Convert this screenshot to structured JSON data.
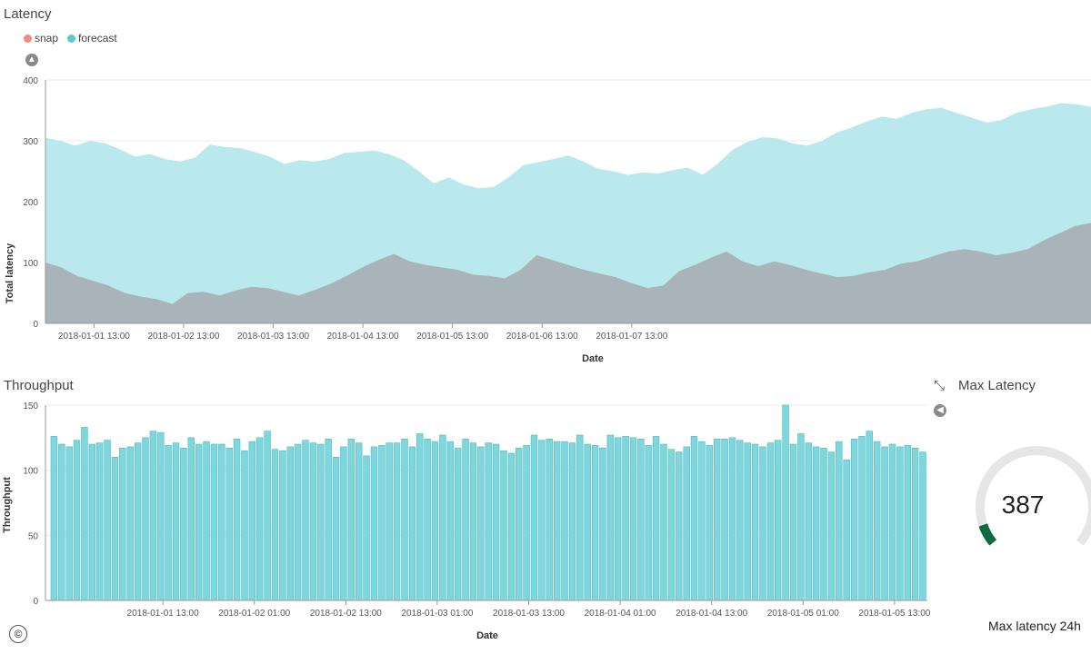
{
  "colors": {
    "snap": "#f28a85",
    "forecast": "#5cc7cf",
    "forecast_fill": "#b9e9ec",
    "snap_fill": "#a9b4ba",
    "bar": "#7fd7de",
    "bar_edge": "#4fb9c2",
    "gauge_track": "#e6e6e6",
    "gauge_fill": "#0f6b3f",
    "axis": "#999999"
  },
  "latency_panel": {
    "title": "Latency",
    "legend": [
      {
        "label": "snap",
        "color": "#f28a85"
      },
      {
        "label": "forecast",
        "color": "#5cc7cf"
      }
    ],
    "collapse_icon": "chevron-up-icon"
  },
  "throughput_panel": {
    "title": "Throughput",
    "collapse_icon": "chevron-left-icon"
  },
  "max_latency_panel": {
    "title": "Max Latency",
    "expand_icon": "expand-arrows-icon",
    "collapse_icon": "chevron-left-icon",
    "value": "387",
    "subtitle": "Max latency 24h",
    "gauge_fraction": 0.08
  },
  "copyright_symbol": "©",
  "chart_data": [
    {
      "type": "area",
      "xlabel": "Date",
      "ylabel": "Total latency",
      "ylim": [
        0,
        400
      ],
      "yticks": [
        0,
        100,
        200,
        300,
        400
      ],
      "x_tick_labels": [
        "2018-01-01 13:00",
        "2018-01-02 13:00",
        "2018-01-03 13:00",
        "2018-01-04 13:00",
        "2018-01-05 13:00",
        "2018-01-06 13:00",
        "2018-01-07 13:00"
      ],
      "x_start": "2018-01-01 00:00",
      "x_step_hours": 4,
      "grid": true,
      "legend_position": "top-left",
      "series": [
        {
          "name": "snap",
          "values": [
            100,
            92,
            78,
            70,
            62,
            50,
            44,
            40,
            32,
            50,
            52,
            46,
            54,
            60,
            58,
            52,
            46,
            55,
            65,
            78,
            92,
            104,
            114,
            102,
            96,
            92,
            88,
            80,
            78,
            74,
            88,
            112,
            104,
            96,
            88,
            82,
            76,
            66,
            58,
            62,
            86,
            96,
            108,
            118,
            102,
            94,
            102,
            96,
            88,
            82,
            76,
            78,
            84,
            88,
            98,
            102,
            110,
            118,
            122,
            118,
            112,
            116,
            122,
            136,
            148,
            160,
            165
          ]
        },
        {
          "name": "forecast",
          "values": [
            305,
            300,
            292,
            300,
            296,
            286,
            274,
            278,
            270,
            266,
            272,
            294,
            290,
            288,
            282,
            274,
            262,
            268,
            266,
            270,
            280,
            282,
            284,
            278,
            268,
            250,
            230,
            240,
            228,
            222,
            224,
            240,
            260,
            265,
            270,
            276,
            266,
            254,
            250,
            244,
            248,
            246,
            252,
            256,
            244,
            262,
            285,
            298,
            306,
            304,
            296,
            292,
            300,
            314,
            322,
            332,
            340,
            336,
            346,
            352,
            354,
            346,
            338,
            330,
            334,
            346,
            352,
            356,
            362,
            360,
            356
          ]
        }
      ]
    },
    {
      "type": "bar",
      "xlabel": "Date",
      "ylabel": "Throughput",
      "ylim": [
        0,
        150
      ],
      "yticks": [
        0,
        50,
        100,
        150
      ],
      "x_tick_labels": [
        "2018-01-01 13:00",
        "2018-01-02 01:00",
        "2018-01-02 13:00",
        "2018-01-03 01:00",
        "2018-01-03 13:00",
        "2018-01-04 01:00",
        "2018-01-04 13:00",
        "2018-01-05 01:00",
        "2018-01-05 13:00"
      ],
      "x_start": "2018-01-01 00:00",
      "x_step_hours": 1,
      "grid": true,
      "values": [
        126,
        120,
        118,
        123,
        133,
        120,
        121,
        123,
        110,
        117,
        118,
        121,
        125,
        130,
        129,
        119,
        121,
        117,
        125,
        120,
        122,
        120,
        120,
        117,
        124,
        115,
        122,
        125,
        130,
        116,
        115,
        118,
        120,
        123,
        121,
        120,
        124,
        110,
        118,
        124,
        121,
        111,
        118,
        119,
        121,
        121,
        124,
        118,
        128,
        124,
        122,
        127,
        122,
        117,
        124,
        121,
        118,
        121,
        120,
        115,
        113,
        117,
        119,
        127,
        123,
        124,
        122,
        122,
        121,
        127,
        120,
        119,
        117,
        127,
        125,
        126,
        125,
        124,
        119,
        126,
        120,
        116,
        114,
        118,
        126,
        122,
        119,
        124,
        124,
        125,
        123,
        121,
        120,
        118,
        121,
        123,
        150,
        120,
        128,
        121,
        118,
        117,
        114,
        122,
        108,
        124,
        126,
        130,
        122,
        118,
        120,
        118,
        119,
        117,
        114
      ]
    }
  ]
}
